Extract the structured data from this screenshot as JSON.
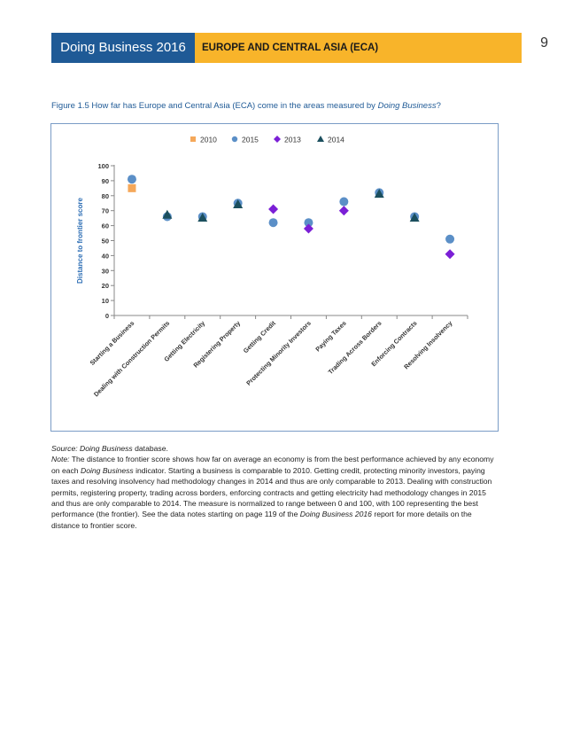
{
  "header": {
    "left_title": "Doing Business 2016",
    "section_title": "EUROPE AND CENTRAL ASIA (ECA)",
    "page_number": "9"
  },
  "figure": {
    "title_prefix": "Figure 1.5 How far has Europe and Central Asia (ECA) come in the areas measured by ",
    "title_italic": "Doing Business",
    "title_suffix": "?"
  },
  "chart_data": {
    "type": "scatter",
    "title": "",
    "xlabel": "",
    "ylabel": "Distance to frontier score",
    "ylim": [
      0,
      100
    ],
    "yticks": [
      0,
      10,
      20,
      30,
      40,
      50,
      60,
      70,
      80,
      90,
      100
    ],
    "grid": false,
    "legend_position": "top-center",
    "categories": [
      "Starting a Business",
      "Dealing with Construction Permits",
      "Getting Electricity",
      "Registering Property",
      "Getting Credit",
      "Protecting Minority Investors",
      "Paying Taxes",
      "Trading Across Borders",
      "Enforcing Contracts",
      "Resolving Insolvency"
    ],
    "series": [
      {
        "name": "2010",
        "marker": "square",
        "color": "#f5a85a",
        "values": [
          85,
          null,
          null,
          null,
          null,
          null,
          null,
          null,
          null,
          null
        ]
      },
      {
        "name": "2015",
        "marker": "circle",
        "color": "#5b8fc7",
        "values": [
          91,
          66,
          66,
          75,
          62,
          62,
          76,
          82,
          66,
          51
        ]
      },
      {
        "name": "2013",
        "marker": "diamond",
        "color": "#7b1fd6",
        "values": [
          null,
          null,
          null,
          null,
          71,
          58,
          70,
          null,
          null,
          41
        ]
      },
      {
        "name": "2014",
        "marker": "triangle",
        "color": "#1b4f5e",
        "values": [
          null,
          67,
          65,
          74,
          null,
          null,
          null,
          81,
          65,
          null
        ]
      }
    ]
  },
  "notes": {
    "source_label": "Source: ",
    "source_italic": "Doing Business",
    "source_rest": " database.",
    "note_label": "Note:",
    "note_part1": " The distance to frontier score shows how far on average an economy is from the best performance achieved by any economy on each ",
    "note_italic1": "Doing Business",
    "note_part2": " indicator.  Starting a business is comparable to 2010. Getting credit, protecting minority investors, paying taxes and resolving insolvency had methodology changes in 2014 and thus are only comparable to 2013.  Dealing with construction permits, registering property, trading across borders, enforcing contracts and getting electricity had methodology changes in 2015 and thus are only comparable to 2014. The measure is normalized to range between 0 and 100, with 100 representing the best performance (the frontier). See the data notes starting on page 119 of the ",
    "note_italic2": "Doing Business 2016",
    "note_part3": " report for more details on the distance to frontier score."
  }
}
